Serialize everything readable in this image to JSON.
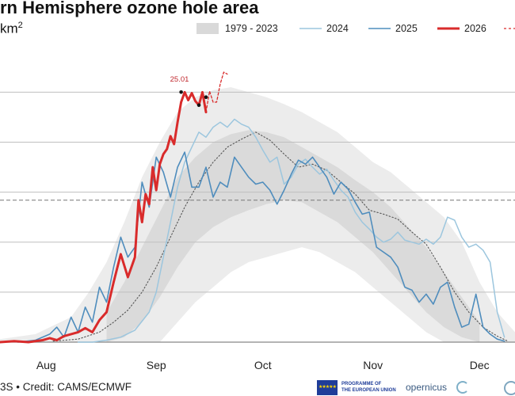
{
  "title_text": "rn Hemisphere ozone hole area",
  "unit": {
    "base": "km",
    "exp": "2"
  },
  "credit": "3S • Credit: CAMS/ECMWF",
  "logos": {
    "eu_flag": "★★★★★",
    "programme_line1": "PROGRAMME OF",
    "programme_line2": "THE EUROPEAN UNION",
    "copernicus": "opernicus"
  },
  "colors": {
    "band": "#d8d8d8",
    "band_inner": "#c8c8c8",
    "c2024": "#9cc6de",
    "c2025": "#4f8dbd",
    "c2026": "#d92b2b",
    "mean": "#555555",
    "grid": "#bfbfbf",
    "ref": "#777777"
  },
  "chart_data": {
    "type": "line",
    "x_ticks": [
      "Aug",
      "Sep",
      "Oct",
      "Nov",
      "Dec"
    ],
    "legend": [
      "1979 - 2023",
      "2024",
      "2025",
      "2026"
    ],
    "annotation": "25.01",
    "xlim": [
      200,
      345
    ],
    "ylim": [
      0,
      32
    ],
    "gridlines": [
      0,
      5,
      10,
      15,
      20,
      25
    ],
    "reference_line": 14.2,
    "tick_days": [
      213,
      244,
      274,
      305,
      335
    ],
    "band_outer": {
      "x": [
        200,
        210,
        220,
        225,
        230,
        235,
        240,
        245,
        250,
        255,
        260,
        265,
        270,
        275,
        280,
        285,
        290,
        295,
        300,
        305,
        310,
        315,
        320,
        325,
        330,
        335,
        340,
        345
      ],
      "upper": [
        0.3,
        0.8,
        2.5,
        5.0,
        8.0,
        12.0,
        16.5,
        20.0,
        23.0,
        24.5,
        25.2,
        25.5,
        25.0,
        24.5,
        23.8,
        23.0,
        22.0,
        21.0,
        19.5,
        18.0,
        17.0,
        15.5,
        14.0,
        12.5,
        10.0,
        6.0,
        3.0,
        1.0
      ],
      "lower": [
        0,
        0,
        0,
        0,
        0,
        0,
        0,
        0,
        2.0,
        4.0,
        5.5,
        7.0,
        8.0,
        8.5,
        9.0,
        9.5,
        9.0,
        8.0,
        7.0,
        5.5,
        4.0,
        2.5,
        1.0,
        0,
        0,
        0,
        0,
        0
      ]
    },
    "band_inner": {
      "x": [
        230,
        235,
        240,
        245,
        250,
        255,
        260,
        265,
        270,
        275,
        280,
        285,
        290,
        295,
        300,
        305,
        310,
        315,
        320,
        325,
        330,
        335
      ],
      "upper": [
        3.0,
        6.0,
        9.5,
        13.0,
        16.5,
        18.5,
        20.0,
        20.8,
        21.2,
        21.0,
        20.5,
        19.5,
        18.5,
        17.5,
        16.2,
        15.0,
        13.5,
        11.5,
        9.5,
        7.0,
        4.5,
        2.0
      ],
      "lower": [
        0,
        0.5,
        2.0,
        4.5,
        7.5,
        10.0,
        11.5,
        12.5,
        13.2,
        13.8,
        14.2,
        14.0,
        13.0,
        12.0,
        10.5,
        9.0,
        7.0,
        5.0,
        3.0,
        1.5,
        0.5,
        0
      ]
    },
    "series": [
      {
        "name": "mean",
        "x": [
          215,
          222,
          228,
          232,
          236,
          240,
          244,
          248,
          252,
          256,
          260,
          264,
          268,
          272,
          276,
          280,
          284,
          288,
          292,
          296,
          300,
          304,
          308,
          312,
          316,
          320,
          324,
          328,
          332,
          336,
          340,
          343
        ],
        "y": [
          0.1,
          0.3,
          1.0,
          2.0,
          3.2,
          5.0,
          7.5,
          10.5,
          13.5,
          16.0,
          18.0,
          19.5,
          20.3,
          21.0,
          20.2,
          18.8,
          17.5,
          17.8,
          17.2,
          16.0,
          14.8,
          13.2,
          12.8,
          12.3,
          11.0,
          9.8,
          7.5,
          5.0,
          3.0,
          1.5,
          0.6,
          0.1
        ]
      },
      {
        "name": "2024",
        "x": [
          222,
          226,
          230,
          234,
          238,
          242,
          244,
          246,
          248,
          250,
          252,
          254,
          256,
          258,
          260,
          262,
          264,
          266,
          268,
          270,
          272,
          274,
          276,
          278,
          280,
          282,
          284,
          286,
          288,
          290,
          292,
          294,
          296,
          298,
          300,
          302,
          304,
          306,
          308,
          310,
          312,
          314,
          316,
          318,
          320,
          322,
          324,
          326,
          328,
          330,
          332,
          334,
          336,
          338,
          340,
          342
        ],
        "y": [
          0,
          0,
          0.2,
          0.5,
          1.2,
          3.0,
          5.0,
          8.5,
          12.0,
          15.5,
          18.0,
          19.5,
          21.0,
          20.5,
          21.5,
          22.0,
          21.5,
          22.3,
          21.8,
          21.5,
          20.5,
          19.2,
          18.0,
          18.5,
          15.8,
          16.5,
          17.8,
          18.3,
          17.5,
          16.8,
          17.3,
          16.2,
          15.2,
          14.5,
          13.0,
          12.0,
          11.3,
          10.5,
          10.0,
          10.3,
          11.0,
          10.2,
          10.0,
          9.8,
          10.3,
          9.8,
          10.5,
          12.5,
          12.2,
          10.5,
          9.5,
          9.8,
          9.2,
          8.0,
          3.0,
          0.5
        ]
      },
      {
        "name": "2025",
        "x": [
          205,
          210,
          214,
          216,
          218,
          220,
          222,
          224,
          226,
          228,
          230,
          232,
          234,
          236,
          238,
          240,
          242,
          244,
          246,
          248,
          250,
          252,
          254,
          256,
          258,
          260,
          262,
          264,
          266,
          268,
          270,
          272,
          274,
          276,
          278,
          280,
          282,
          284,
          286,
          288,
          290,
          292,
          294,
          296,
          298,
          300,
          302,
          304,
          306,
          308,
          310,
          312,
          314,
          316,
          318,
          320,
          322,
          324,
          326,
          328,
          330,
          332,
          334,
          336,
          338,
          340,
          342
        ],
        "y": [
          0,
          0.2,
          0.8,
          1.5,
          0.5,
          2.5,
          1.0,
          3.5,
          2.0,
          5.5,
          4.0,
          7.5,
          10.5,
          8.5,
          9.5,
          16.0,
          13.5,
          18.5,
          17.0,
          14.5,
          17.5,
          19.0,
          15.5,
          15.5,
          17.5,
          14.5,
          16.0,
          15.5,
          18.5,
          17.5,
          16.5,
          15.8,
          16.0,
          15.2,
          13.8,
          15.2,
          16.8,
          18.2,
          17.8,
          18.5,
          17.5,
          16.5,
          14.8,
          16.0,
          15.3,
          14.0,
          12.8,
          13.0,
          9.5,
          9.0,
          8.5,
          7.5,
          5.5,
          5.2,
          4.0,
          4.8,
          3.8,
          5.5,
          6.0,
          3.5,
          1.5,
          1.8,
          4.8,
          1.5,
          0.8,
          0.3,
          0.1
        ]
      },
      {
        "name": "2026",
        "x": [
          200,
          204,
          208,
          212,
          214,
          216,
          218,
          220,
          222,
          224,
          226,
          228,
          230,
          232,
          234,
          236,
          238,
          239,
          240,
          241,
          242,
          243,
          244,
          245,
          246,
          247,
          248,
          249,
          250,
          251,
          252,
          253,
          254,
          255,
          256,
          257,
          258
        ],
        "y": [
          0,
          0.1,
          0,
          0.2,
          0.4,
          0.2,
          0.6,
          0.8,
          1.0,
          1.4,
          1.0,
          2.2,
          3.0,
          6.0,
          8.8,
          6.5,
          8.5,
          14.2,
          12.0,
          14.8,
          13.8,
          17.5,
          15.2,
          17.8,
          18.8,
          19.3,
          20.6,
          19.8,
          22.0,
          24.0,
          25.0,
          24.2,
          24.9,
          24.1,
          23.7,
          25.0,
          23.0
        ]
      },
      {
        "name": "2026-forecast",
        "x": [
          258,
          259,
          260,
          261,
          262,
          263,
          264
        ],
        "y": [
          23.0,
          25.1,
          24.0,
          24.0,
          25.8,
          27.0,
          26.8
        ]
      }
    ],
    "markers": [
      {
        "x": 251,
        "y": 25.01
      },
      {
        "x": 256,
        "y": 23.7
      },
      {
        "x": 258,
        "y": 24.5
      }
    ]
  }
}
